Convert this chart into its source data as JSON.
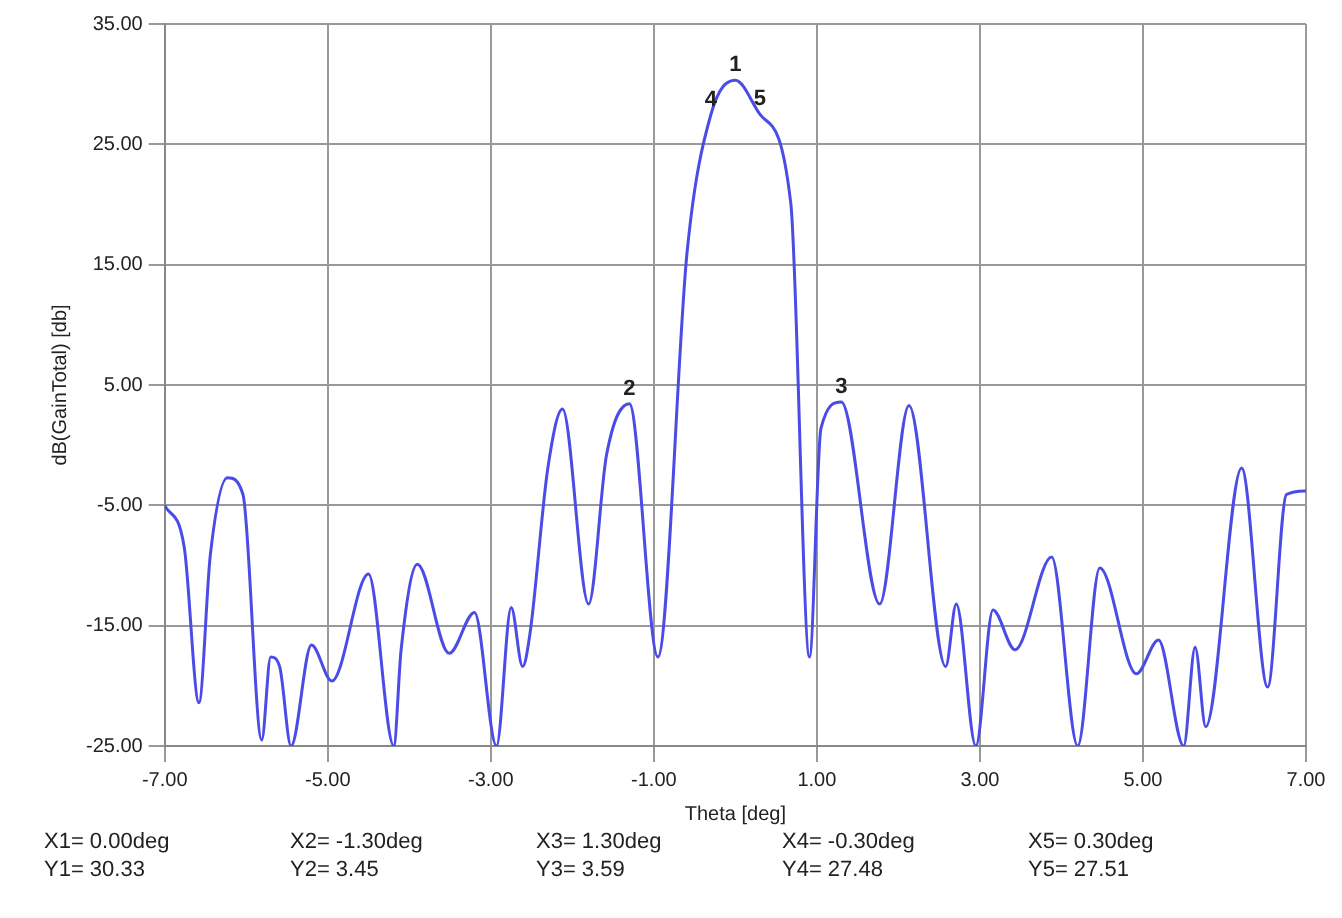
{
  "chart_data": {
    "type": "line",
    "xlabel": "Theta [deg]",
    "ylabel": "dB(GainTotal) [db]",
    "xlim": [
      -7,
      7
    ],
    "ylim": [
      -25,
      35
    ],
    "xticks": [
      {
        "value": -7,
        "label": "-7.00"
      },
      {
        "value": -5,
        "label": "-5.00"
      },
      {
        "value": -3,
        "label": "-3.00"
      },
      {
        "value": -1,
        "label": "-1.00"
      },
      {
        "value": 1,
        "label": "1.00"
      },
      {
        "value": 3,
        "label": "3.00"
      },
      {
        "value": 5,
        "label": "5.00"
      },
      {
        "value": 7,
        "label": "7.00"
      }
    ],
    "yticks": [
      {
        "value": -25,
        "label": "-25.00"
      },
      {
        "value": -15,
        "label": "-15.00"
      },
      {
        "value": -5,
        "label": "-5.00"
      },
      {
        "value": 5,
        "label": "5.00"
      },
      {
        "value": 15,
        "label": "15.00"
      },
      {
        "value": 25,
        "label": "25.00"
      },
      {
        "value": 35,
        "label": "35.00"
      }
    ],
    "grid": true,
    "legend": false,
    "marker": "none",
    "line_style": "solid",
    "series": [
      {
        "color": "#4b4be6",
        "x": [
          -7,
          -6.76,
          -6.58,
          -6.44,
          -6.23,
          -6.04,
          -5.81,
          -5.7,
          -5.59,
          -5.45,
          -5.2,
          -4.95,
          -4.5,
          -4.19,
          -4.1,
          -3.9,
          -3.51,
          -3.2,
          -2.93,
          -2.75,
          -2.61,
          -2.52,
          -2.3,
          -2.12,
          -1.8,
          -1.58,
          -1.3,
          -0.95,
          -0.59,
          -0.3,
          0,
          0.3,
          0.68,
          0.91,
          1.05,
          1.3,
          1.77,
          2.13,
          2.58,
          2.71,
          2.95,
          3.16,
          3.43,
          3.88,
          4.2,
          4.47,
          4.92,
          5.19,
          5.5,
          5.64,
          5.77,
          6.21,
          6.53,
          6.76,
          7
        ],
        "values": [
          -5,
          -8.5,
          -21.4,
          -9.1,
          -2.7,
          -4.1,
          -24.5,
          -17.6,
          -18.4,
          -25,
          -16.6,
          -19.6,
          -10.7,
          -25,
          -17,
          -9.9,
          -17.3,
          -13.9,
          -25,
          -13.5,
          -18.4,
          -15.7,
          -1.9,
          3,
          -13.2,
          -0.8,
          3.45,
          -17.6,
          16.2,
          27.48,
          30.33,
          27.51,
          20.1,
          -17.6,
          1.4,
          3.59,
          -13.2,
          3.3,
          -18.4,
          -13.2,
          -25,
          -13.7,
          -17,
          -9.3,
          -25,
          -10.2,
          -19,
          -16.2,
          -25,
          -16.8,
          -23.4,
          -1.9,
          -20.1,
          -4.1,
          -3.8
        ]
      }
    ],
    "annotations": [
      {
        "text": "1",
        "x": 0,
        "y": 30.33
      },
      {
        "text": "2",
        "x": -1.3,
        "y": 3.45
      },
      {
        "text": "3",
        "x": 1.3,
        "y": 3.59
      },
      {
        "text": "4",
        "x": -0.3,
        "y": 27.48
      },
      {
        "text": "5",
        "x": 0.3,
        "y": 27.51
      },
      "X1= 0.00deg",
      "Y1= 30.33",
      "X2= -1.30deg",
      "Y2= 3.45",
      "X3= 1.30deg",
      "Y3= 3.59",
      "X4= -0.30deg",
      "Y4= 27.48",
      "X5= 0.30deg",
      "Y5= 27.51"
    ]
  }
}
